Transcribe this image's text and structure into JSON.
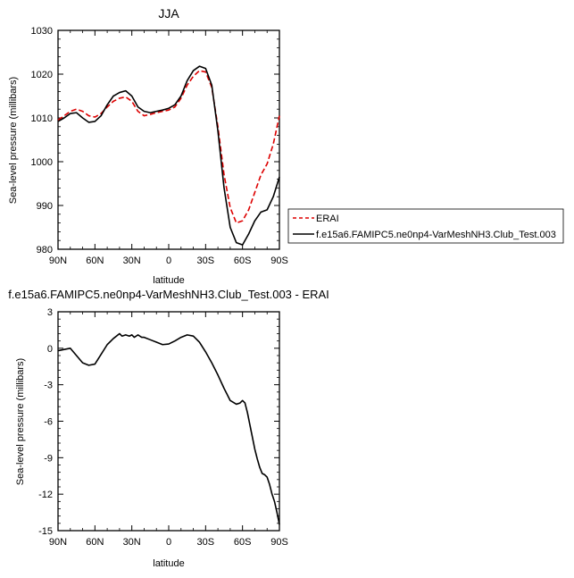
{
  "chart_data": [
    {
      "type": "line",
      "title": "JJA",
      "xlabel": "latitude",
      "ylabel": "Sea-level pressure (millibars)",
      "xlim": [
        90,
        -90
      ],
      "ylim": [
        980,
        1030
      ],
      "x_ticks": [
        90,
        60,
        30,
        0,
        -30,
        -60,
        -90
      ],
      "x_tick_labels": [
        "90N",
        "60N",
        "30N",
        "0",
        "30S",
        "60S",
        "90S"
      ],
      "y_ticks": [
        980,
        990,
        1000,
        1010,
        1020,
        1030
      ],
      "y_tick_labels": [
        "980",
        "990",
        "1000",
        "1010",
        "1020",
        "1030"
      ],
      "legend_position": "outside-right",
      "series": [
        {
          "name": "ERAI",
          "color": "#dd0000",
          "dash": "dashed",
          "x": [
            90,
            85,
            80,
            75,
            70,
            65,
            60,
            55,
            50,
            45,
            40,
            35,
            30,
            25,
            20,
            15,
            10,
            5,
            0,
            -5,
            -10,
            -15,
            -20,
            -25,
            -30,
            -35,
            -40,
            -45,
            -50,
            -55,
            -60,
            -65,
            -70,
            -75,
            -80,
            -85,
            -90
          ],
          "y": [
            1009.5,
            1010.5,
            1011.5,
            1012,
            1011.5,
            1010.5,
            1010.2,
            1011,
            1012.5,
            1013.8,
            1014.5,
            1014.8,
            1013.8,
            1011.5,
            1010.5,
            1010.8,
            1011.2,
            1011.5,
            1011.8,
            1012.5,
            1014.5,
            1017.5,
            1019.5,
            1020.8,
            1020.5,
            1017,
            1008,
            997,
            989.5,
            986,
            986.5,
            989,
            993,
            997,
            999.5,
            1004,
            1010.5
          ]
        },
        {
          "name": "f.e15a6.FAMIPC5.ne0np4-VarMeshNH3.Club_Test.003",
          "color": "#000000",
          "dash": "solid",
          "x": [
            90,
            85,
            80,
            75,
            70,
            65,
            60,
            55,
            50,
            45,
            40,
            35,
            30,
            25,
            20,
            15,
            10,
            5,
            0,
            -5,
            -10,
            -15,
            -20,
            -25,
            -30,
            -35,
            -40,
            -45,
            -50,
            -55,
            -60,
            -65,
            -70,
            -75,
            -80,
            -85,
            -90
          ],
          "y": [
            1009.2,
            1010,
            1011,
            1011.2,
            1010,
            1009,
            1009.2,
            1010.5,
            1013,
            1015,
            1015.8,
            1016.2,
            1015,
            1012.5,
            1011.5,
            1011.2,
            1011.5,
            1011.8,
            1012.2,
            1013,
            1015,
            1018.5,
            1020.8,
            1021.8,
            1021.3,
            1017.5,
            1007,
            994,
            985,
            981.5,
            981,
            983.5,
            986.5,
            988.5,
            989,
            992,
            996.5
          ]
        }
      ]
    },
    {
      "type": "line",
      "title": "f.e15a6.FAMIPC5.ne0np4-VarMeshNH3.Club_Test.003 - ERAI",
      "xlabel": "latitude",
      "ylabel": "Sea-level pressure (millibars)",
      "xlim": [
        90,
        -90
      ],
      "ylim": [
        -15,
        3
      ],
      "x_ticks": [
        90,
        60,
        30,
        0,
        -30,
        -60,
        -90
      ],
      "x_tick_labels": [
        "90N",
        "60N",
        "30N",
        "0",
        "30S",
        "60S",
        "90S"
      ],
      "y_ticks": [
        -15,
        -12,
        -9,
        -6,
        -3,
        0,
        3
      ],
      "y_tick_labels": [
        "-15",
        "-12",
        "-9",
        "-6",
        "-3",
        "0",
        "3"
      ],
      "series": [
        {
          "color": "#000000",
          "dash": "solid",
          "x": [
            90,
            85,
            80,
            75,
            70,
            65,
            60,
            55,
            50,
            45,
            40,
            38,
            35,
            32,
            30,
            28,
            25,
            22,
            20,
            15,
            10,
            5,
            0,
            -5,
            -10,
            -15,
            -20,
            -25,
            -30,
            -35,
            -40,
            -45,
            -50,
            -55,
            -58,
            -60,
            -62,
            -64,
            -66,
            -68,
            -70,
            -72,
            -74,
            -76,
            -78,
            -80,
            -82,
            -84,
            -86,
            -88,
            -90
          ],
          "y": [
            -0.2,
            -0.1,
            0,
            -0.6,
            -1.2,
            -1.4,
            -1.3,
            -0.5,
            0.3,
            0.8,
            1.2,
            1.0,
            1.1,
            1.0,
            1.1,
            0.9,
            1.1,
            0.9,
            0.9,
            0.7,
            0.5,
            0.3,
            0.35,
            0.6,
            0.9,
            1.1,
            1.0,
            0.5,
            -0.3,
            -1.2,
            -2.2,
            -3.3,
            -4.3,
            -4.6,
            -4.5,
            -4.3,
            -4.5,
            -5.3,
            -6.3,
            -7.3,
            -8.3,
            -9.1,
            -9.8,
            -10.3,
            -10.4,
            -10.6,
            -11.2,
            -12,
            -12.6,
            -13.5,
            -14.5
          ]
        }
      ]
    }
  ]
}
